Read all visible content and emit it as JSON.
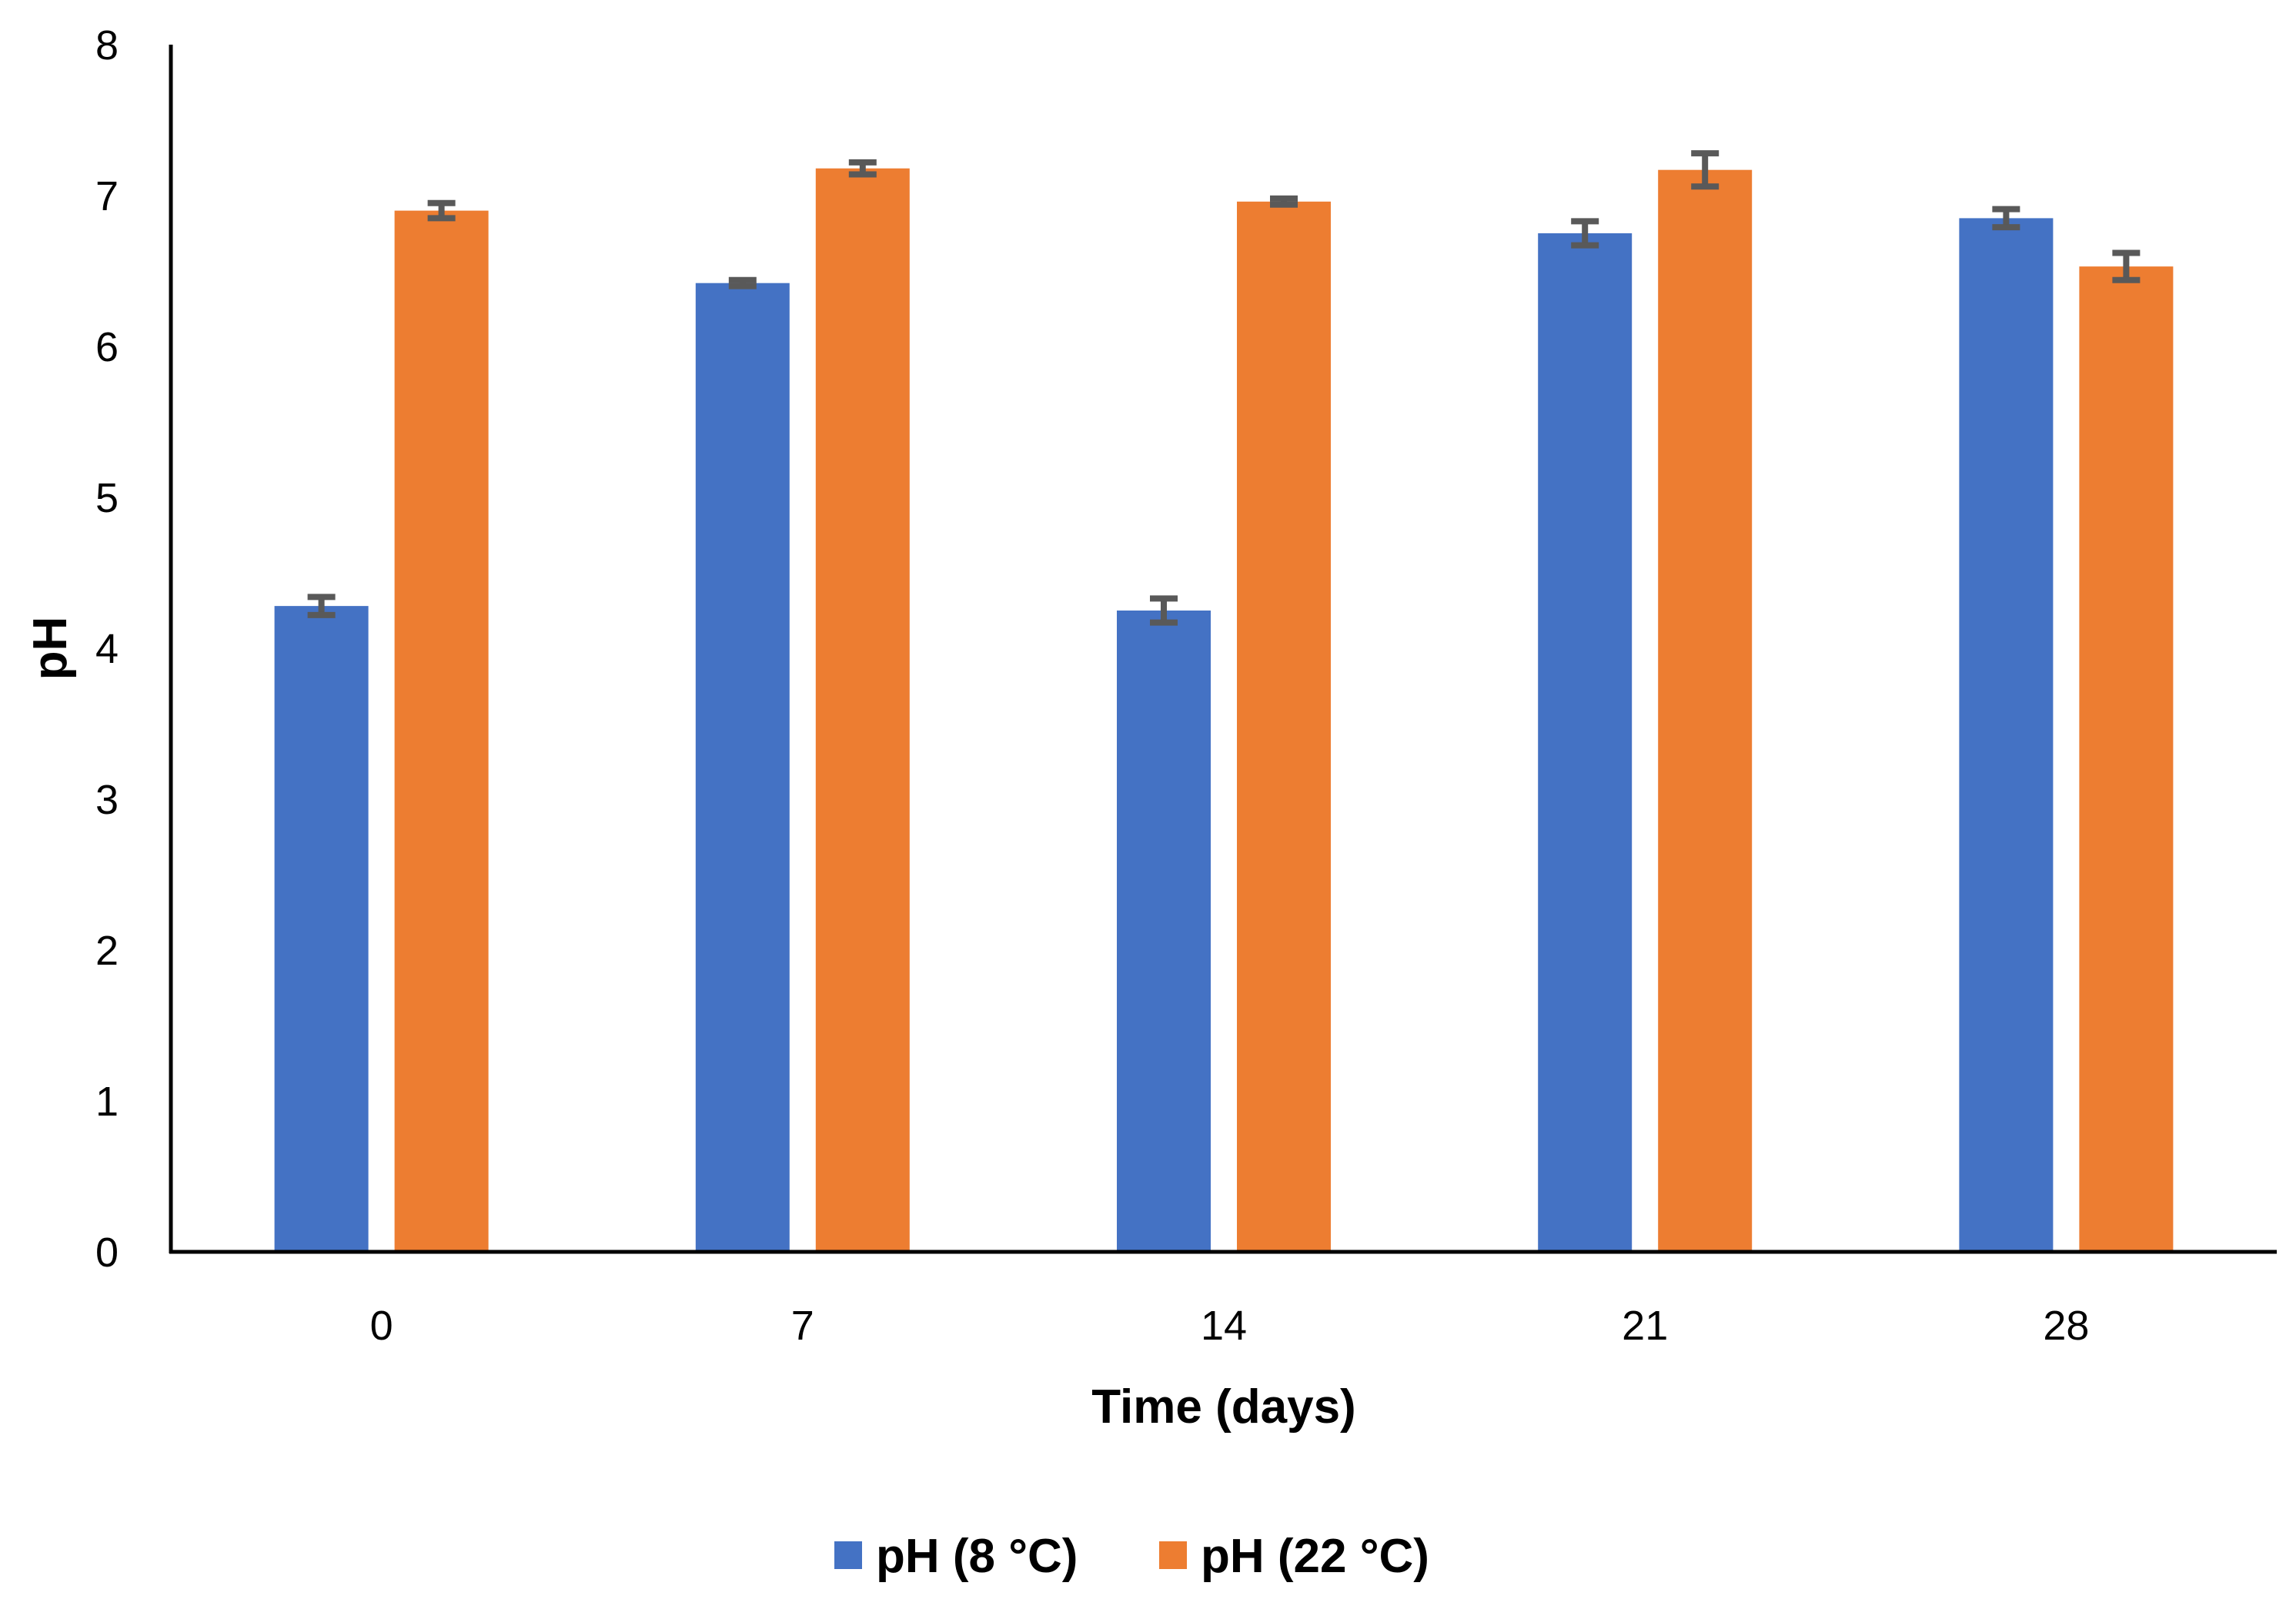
{
  "chart_data": {
    "type": "bar",
    "title": "",
    "xlabel": "Time (days)",
    "ylabel": "pH",
    "ylim": [
      0,
      8
    ],
    "yticks": [
      "0",
      "1",
      "2",
      "3",
      "4",
      "5",
      "6",
      "7",
      "8"
    ],
    "grid": false,
    "legend_position": "bottom",
    "categories": [
      "0",
      "7",
      "14",
      "21",
      "28"
    ],
    "series": [
      {
        "name": "pH (8 °C)",
        "color": "#4472C4",
        "values": [
          4.28,
          6.42,
          4.25,
          6.75,
          6.85
        ],
        "errors": [
          0.06,
          0.02,
          0.08,
          0.08,
          0.06
        ]
      },
      {
        "name": "pH (22 °C)",
        "color": "#ED7D31",
        "values": [
          6.9,
          7.18,
          6.96,
          7.17,
          6.53
        ],
        "errors": [
          0.05,
          0.04,
          0.02,
          0.11,
          0.09
        ]
      }
    ],
    "error_bar_color": "#595959"
  }
}
